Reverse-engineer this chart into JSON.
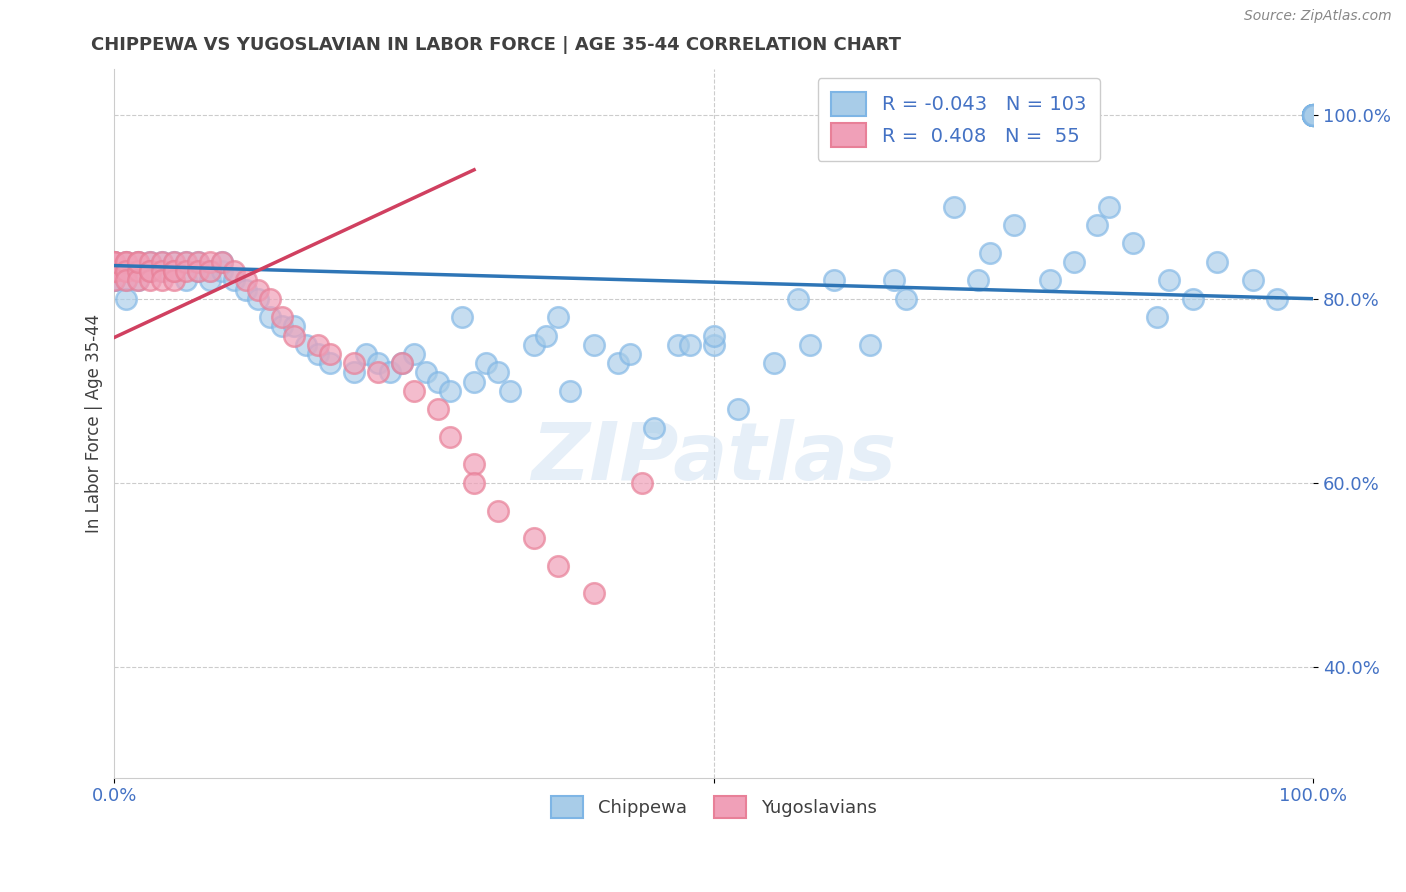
{
  "title": "CHIPPEWA VS YUGOSLAVIAN IN LABOR FORCE | AGE 35-44 CORRELATION CHART",
  "ylabel": "In Labor Force | Age 35-44",
  "source": "Source: ZipAtlas.com",
  "watermark": "ZIPatlas",
  "xlim": [
    0.0,
    1.0
  ],
  "ylim": [
    0.28,
    1.05
  ],
  "y_ticks": [
    0.4,
    0.6,
    0.8,
    1.0
  ],
  "y_tick_labels": [
    "40.0%",
    "60.0%",
    "80.0%",
    "100.0%"
  ],
  "blue_line_x": [
    0.0,
    1.0
  ],
  "blue_line_y": [
    0.836,
    0.8
  ],
  "pink_line_x": [
    0.0,
    0.3
  ],
  "pink_line_y": [
    0.758,
    0.94
  ],
  "blue_color": "#A8CCE8",
  "pink_color": "#F0A0B8",
  "blue_edge_color": "#7EB5E5",
  "pink_edge_color": "#E88098",
  "blue_line_color": "#2E75B6",
  "pink_line_color": "#D04060",
  "title_color": "#404040",
  "tick_label_color": "#4472C4",
  "grid_color": "#CCCCCC",
  "background_color": "#FFFFFF",
  "blue_x": [
    0.0,
    0.0,
    0.0,
    0.0,
    0.0,
    0.0,
    0.0,
    0.01,
    0.01,
    0.01,
    0.01,
    0.02,
    0.02,
    0.03,
    0.03,
    0.04,
    0.04,
    0.05,
    0.05,
    0.06,
    0.06,
    0.07,
    0.07,
    0.08,
    0.08,
    0.09,
    0.09,
    0.1,
    0.11,
    0.12,
    0.13,
    0.14,
    0.15,
    0.16,
    0.17,
    0.18,
    0.2,
    0.21,
    0.22,
    0.23,
    0.24,
    0.25,
    0.26,
    0.27,
    0.28,
    0.29,
    0.3,
    0.31,
    0.32,
    0.33,
    0.35,
    0.36,
    0.37,
    0.38,
    0.4,
    0.42,
    0.43,
    0.45,
    0.47,
    0.48,
    0.5,
    0.5,
    0.52,
    0.55,
    0.57,
    0.58,
    0.6,
    0.63,
    0.65,
    0.66,
    0.7,
    0.72,
    0.73,
    0.75,
    0.78,
    0.8,
    0.82,
    0.83,
    0.85,
    0.87,
    0.88,
    0.9,
    0.92,
    0.95,
    0.97,
    1.0,
    1.0,
    1.0,
    1.0,
    1.0,
    1.0,
    1.0,
    1.0,
    1.0,
    1.0,
    1.0,
    1.0,
    1.0,
    1.0,
    1.0,
    1.0,
    1.0,
    1.0
  ],
  "blue_y": [
    0.84,
    0.83,
    0.82,
    0.82,
    0.84,
    0.83,
    0.82,
    0.83,
    0.84,
    0.82,
    0.8,
    0.84,
    0.82,
    0.83,
    0.84,
    0.84,
    0.83,
    0.84,
    0.83,
    0.82,
    0.84,
    0.83,
    0.84,
    0.83,
    0.82,
    0.83,
    0.84,
    0.82,
    0.81,
    0.8,
    0.78,
    0.77,
    0.77,
    0.75,
    0.74,
    0.73,
    0.72,
    0.74,
    0.73,
    0.72,
    0.73,
    0.74,
    0.72,
    0.71,
    0.7,
    0.78,
    0.71,
    0.73,
    0.72,
    0.7,
    0.75,
    0.76,
    0.78,
    0.7,
    0.75,
    0.73,
    0.74,
    0.66,
    0.75,
    0.75,
    0.75,
    0.76,
    0.68,
    0.73,
    0.8,
    0.75,
    0.82,
    0.75,
    0.82,
    0.8,
    0.9,
    0.82,
    0.85,
    0.88,
    0.82,
    0.84,
    0.88,
    0.9,
    0.86,
    0.78,
    0.82,
    0.8,
    0.84,
    0.82,
    0.8,
    1.0,
    1.0,
    1.0,
    1.0,
    1.0,
    1.0,
    1.0,
    1.0,
    1.0,
    1.0,
    1.0,
    1.0,
    1.0,
    1.0,
    1.0,
    1.0,
    1.0,
    1.0
  ],
  "pink_x": [
    0.0,
    0.0,
    0.0,
    0.0,
    0.0,
    0.0,
    0.0,
    0.01,
    0.01,
    0.01,
    0.01,
    0.01,
    0.02,
    0.02,
    0.02,
    0.02,
    0.03,
    0.03,
    0.03,
    0.03,
    0.04,
    0.04,
    0.04,
    0.05,
    0.05,
    0.05,
    0.05,
    0.06,
    0.06,
    0.07,
    0.07,
    0.08,
    0.08,
    0.09,
    0.1,
    0.11,
    0.12,
    0.13,
    0.14,
    0.15,
    0.17,
    0.18,
    0.2,
    0.22,
    0.24,
    0.25,
    0.27,
    0.28,
    0.3,
    0.3,
    0.32,
    0.35,
    0.37,
    0.4,
    0.44
  ],
  "pink_y": [
    0.84,
    0.83,
    0.83,
    0.84,
    0.82,
    0.83,
    0.84,
    0.83,
    0.84,
    0.84,
    0.83,
    0.82,
    0.84,
    0.83,
    0.82,
    0.84,
    0.84,
    0.83,
    0.82,
    0.83,
    0.84,
    0.83,
    0.82,
    0.84,
    0.83,
    0.82,
    0.83,
    0.84,
    0.83,
    0.84,
    0.83,
    0.84,
    0.83,
    0.84,
    0.83,
    0.82,
    0.81,
    0.8,
    0.78,
    0.76,
    0.75,
    0.74,
    0.73,
    0.72,
    0.73,
    0.7,
    0.68,
    0.65,
    0.62,
    0.6,
    0.57,
    0.54,
    0.51,
    0.48,
    0.6
  ]
}
